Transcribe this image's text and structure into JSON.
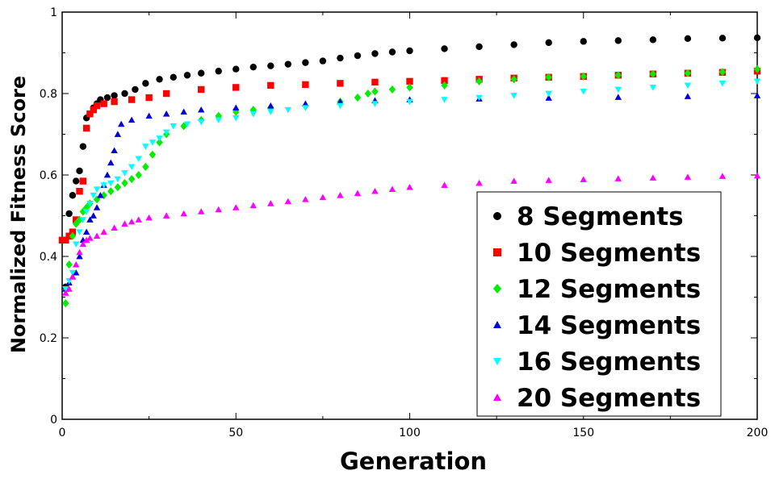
{
  "chart_data": {
    "type": "scatter",
    "title": "",
    "xlabel": "Generation",
    "ylabel": "Normalized Fitness Score",
    "xlim": [
      0,
      200
    ],
    "ylim": [
      0,
      1
    ],
    "x_ticks": [
      "0",
      "50",
      "100",
      "150",
      "200"
    ],
    "y_ticks": [
      "0",
      "0.2",
      "0.4",
      "0.6",
      "0.8",
      "1"
    ],
    "grid": false,
    "legend_position": "bottom-right",
    "series": [
      {
        "name": "8 Segments",
        "color": "#000000",
        "marker": "circle",
        "points": [
          [
            1,
            0.325
          ],
          [
            2,
            0.505
          ],
          [
            3,
            0.55
          ],
          [
            4,
            0.585
          ],
          [
            5,
            0.61
          ],
          [
            6,
            0.67
          ],
          [
            7,
            0.74
          ],
          [
            8,
            0.75
          ],
          [
            9,
            0.765
          ],
          [
            10,
            0.775
          ],
          [
            11,
            0.785
          ],
          [
            13,
            0.79
          ],
          [
            15,
            0.795
          ],
          [
            18,
            0.8
          ],
          [
            21,
            0.81
          ],
          [
            24,
            0.825
          ],
          [
            28,
            0.835
          ],
          [
            32,
            0.84
          ],
          [
            36,
            0.845
          ],
          [
            40,
            0.85
          ],
          [
            45,
            0.855
          ],
          [
            50,
            0.86
          ],
          [
            55,
            0.865
          ],
          [
            60,
            0.868
          ],
          [
            65,
            0.872
          ],
          [
            70,
            0.876
          ],
          [
            75,
            0.88
          ],
          [
            80,
            0.887
          ],
          [
            85,
            0.893
          ],
          [
            90,
            0.898
          ],
          [
            95,
            0.902
          ],
          [
            100,
            0.905
          ],
          [
            110,
            0.91
          ],
          [
            120,
            0.915
          ],
          [
            130,
            0.92
          ],
          [
            140,
            0.925
          ],
          [
            150,
            0.928
          ],
          [
            160,
            0.93
          ],
          [
            170,
            0.932
          ],
          [
            180,
            0.935
          ],
          [
            190,
            0.936
          ],
          [
            200,
            0.937
          ]
        ]
      },
      {
        "name": "10 Segments",
        "color": "#ff0000",
        "marker": "square",
        "points": [
          [
            0,
            0.44
          ],
          [
            1,
            0.44
          ],
          [
            2,
            0.45
          ],
          [
            3,
            0.46
          ],
          [
            4,
            0.49
          ],
          [
            5,
            0.56
          ],
          [
            6,
            0.585
          ],
          [
            7,
            0.715
          ],
          [
            8,
            0.75
          ],
          [
            9,
            0.76
          ],
          [
            10,
            0.77
          ],
          [
            12,
            0.775
          ],
          [
            15,
            0.78
          ],
          [
            20,
            0.785
          ],
          [
            25,
            0.79
          ],
          [
            30,
            0.8
          ],
          [
            40,
            0.81
          ],
          [
            50,
            0.815
          ],
          [
            60,
            0.82
          ],
          [
            70,
            0.822
          ],
          [
            80,
            0.825
          ],
          [
            90,
            0.828
          ],
          [
            100,
            0.83
          ],
          [
            110,
            0.832
          ],
          [
            120,
            0.835
          ],
          [
            130,
            0.838
          ],
          [
            140,
            0.84
          ],
          [
            150,
            0.842
          ],
          [
            160,
            0.845
          ],
          [
            170,
            0.848
          ],
          [
            180,
            0.85
          ],
          [
            190,
            0.852
          ],
          [
            200,
            0.855
          ]
        ]
      },
      {
        "name": "12 Segments",
        "color": "#00ee00",
        "marker": "diamond",
        "points": [
          [
            1,
            0.285
          ],
          [
            2,
            0.38
          ],
          [
            3,
            0.45
          ],
          [
            4,
            0.48
          ],
          [
            5,
            0.49
          ],
          [
            6,
            0.51
          ],
          [
            7,
            0.52
          ],
          [
            8,
            0.53
          ],
          [
            10,
            0.54
          ],
          [
            12,
            0.55
          ],
          [
            14,
            0.56
          ],
          [
            16,
            0.57
          ],
          [
            18,
            0.58
          ],
          [
            20,
            0.59
          ],
          [
            22,
            0.6
          ],
          [
            24,
            0.62
          ],
          [
            26,
            0.65
          ],
          [
            28,
            0.68
          ],
          [
            30,
            0.7
          ],
          [
            35,
            0.72
          ],
          [
            40,
            0.735
          ],
          [
            45,
            0.745
          ],
          [
            50,
            0.755
          ],
          [
            55,
            0.76
          ],
          [
            60,
            0.765
          ],
          [
            70,
            0.77
          ],
          [
            80,
            0.78
          ],
          [
            85,
            0.79
          ],
          [
            88,
            0.8
          ],
          [
            90,
            0.805
          ],
          [
            95,
            0.81
          ],
          [
            100,
            0.815
          ],
          [
            110,
            0.82
          ],
          [
            120,
            0.83
          ],
          [
            130,
            0.835
          ],
          [
            140,
            0.84
          ],
          [
            150,
            0.842
          ],
          [
            160,
            0.845
          ],
          [
            170,
            0.848
          ],
          [
            180,
            0.85
          ],
          [
            190,
            0.853
          ],
          [
            200,
            0.86
          ]
        ]
      },
      {
        "name": "14 Segments",
        "color": "#0000dd",
        "marker": "triangle-up",
        "points": [
          [
            1,
            0.32
          ],
          [
            2,
            0.335
          ],
          [
            3,
            0.35
          ],
          [
            4,
            0.36
          ],
          [
            5,
            0.4
          ],
          [
            6,
            0.44
          ],
          [
            7,
            0.46
          ],
          [
            8,
            0.49
          ],
          [
            9,
            0.5
          ],
          [
            10,
            0.52
          ],
          [
            11,
            0.55
          ],
          [
            12,
            0.575
          ],
          [
            13,
            0.6
          ],
          [
            14,
            0.63
          ],
          [
            15,
            0.66
          ],
          [
            16,
            0.7
          ],
          [
            17,
            0.725
          ],
          [
            20,
            0.735
          ],
          [
            25,
            0.745
          ],
          [
            30,
            0.75
          ],
          [
            35,
            0.755
          ],
          [
            40,
            0.76
          ],
          [
            50,
            0.765
          ],
          [
            60,
            0.77
          ],
          [
            70,
            0.775
          ],
          [
            80,
            0.78
          ],
          [
            90,
            0.783
          ],
          [
            100,
            0.785
          ],
          [
            120,
            0.787
          ],
          [
            140,
            0.789
          ],
          [
            160,
            0.791
          ],
          [
            180,
            0.793
          ],
          [
            200,
            0.795
          ]
        ]
      },
      {
        "name": "16 Segments",
        "color": "#00ffff",
        "marker": "triangle-down",
        "points": [
          [
            1,
            0.32
          ],
          [
            2,
            0.34
          ],
          [
            3,
            0.36
          ],
          [
            4,
            0.43
          ],
          [
            5,
            0.46
          ],
          [
            6,
            0.49
          ],
          [
            7,
            0.51
          ],
          [
            8,
            0.53
          ],
          [
            9,
            0.55
          ],
          [
            10,
            0.565
          ],
          [
            12,
            0.575
          ],
          [
            14,
            0.58
          ],
          [
            16,
            0.59
          ],
          [
            18,
            0.605
          ],
          [
            20,
            0.62
          ],
          [
            22,
            0.64
          ],
          [
            24,
            0.67
          ],
          [
            26,
            0.68
          ],
          [
            28,
            0.69
          ],
          [
            30,
            0.705
          ],
          [
            32,
            0.72
          ],
          [
            36,
            0.725
          ],
          [
            40,
            0.73
          ],
          [
            45,
            0.735
          ],
          [
            50,
            0.74
          ],
          [
            55,
            0.75
          ],
          [
            60,
            0.755
          ],
          [
            65,
            0.76
          ],
          [
            70,
            0.765
          ],
          [
            80,
            0.77
          ],
          [
            90,
            0.775
          ],
          [
            100,
            0.78
          ],
          [
            110,
            0.785
          ],
          [
            120,
            0.79
          ],
          [
            130,
            0.795
          ],
          [
            140,
            0.8
          ],
          [
            150,
            0.805
          ],
          [
            160,
            0.81
          ],
          [
            170,
            0.815
          ],
          [
            180,
            0.82
          ],
          [
            190,
            0.825
          ],
          [
            200,
            0.83
          ]
        ]
      },
      {
        "name": "20 Segments",
        "color": "#ff00ff",
        "marker": "triangle-up",
        "points": [
          [
            1,
            0.31
          ],
          [
            2,
            0.32
          ],
          [
            3,
            0.35
          ],
          [
            4,
            0.38
          ],
          [
            5,
            0.41
          ],
          [
            6,
            0.43
          ],
          [
            7,
            0.44
          ],
          [
            8,
            0.445
          ],
          [
            10,
            0.45
          ],
          [
            12,
            0.46
          ],
          [
            15,
            0.47
          ],
          [
            18,
            0.48
          ],
          [
            20,
            0.485
          ],
          [
            22,
            0.49
          ],
          [
            25,
            0.495
          ],
          [
            30,
            0.5
          ],
          [
            35,
            0.505
          ],
          [
            40,
            0.51
          ],
          [
            45,
            0.515
          ],
          [
            50,
            0.52
          ],
          [
            55,
            0.525
          ],
          [
            60,
            0.53
          ],
          [
            65,
            0.535
          ],
          [
            70,
            0.54
          ],
          [
            75,
            0.545
          ],
          [
            80,
            0.55
          ],
          [
            85,
            0.555
          ],
          [
            90,
            0.56
          ],
          [
            95,
            0.565
          ],
          [
            100,
            0.57
          ],
          [
            110,
            0.575
          ],
          [
            120,
            0.58
          ],
          [
            130,
            0.585
          ],
          [
            140,
            0.587
          ],
          [
            150,
            0.589
          ],
          [
            160,
            0.591
          ],
          [
            170,
            0.593
          ],
          [
            180,
            0.595
          ],
          [
            190,
            0.597
          ],
          [
            200,
            0.598
          ]
        ]
      }
    ]
  }
}
